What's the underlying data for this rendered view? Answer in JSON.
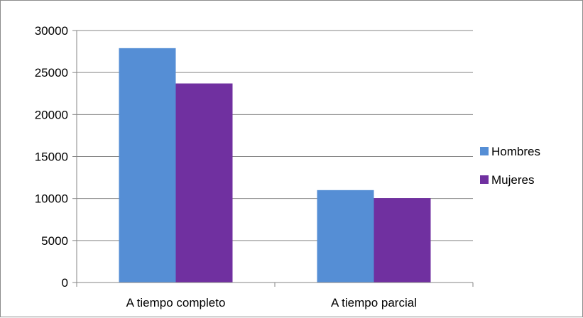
{
  "chart_data": {
    "type": "bar",
    "categories": [
      "A tiempo completo",
      "A tiempo parcial"
    ],
    "series": [
      {
        "name": "Hombres",
        "values": [
          27900,
          11000
        ],
        "color": "#558ED5"
      },
      {
        "name": "Mujeres",
        "values": [
          23700,
          10050
        ],
        "color": "#7030A0"
      }
    ],
    "ylim": [
      0,
      30000
    ],
    "yticks": [
      0,
      5000,
      10000,
      15000,
      20000,
      25000,
      30000
    ],
    "grid": true,
    "legend_position": "right"
  }
}
